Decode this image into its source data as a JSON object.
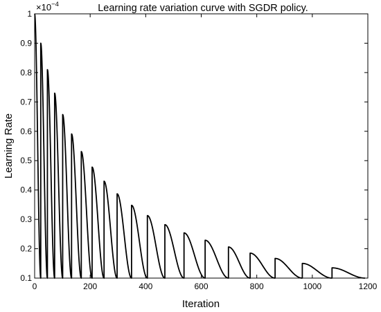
{
  "chart_data": {
    "type": "line",
    "title": "Learning rate variation curve with SGDR policy.",
    "xlabel": "Iteration",
    "ylabel": "Learning Rate",
    "xlim": [
      0,
      1200
    ],
    "ylim": [
      0.1,
      1.0
    ],
    "y_scale_factor": {
      "base": "×10",
      "exponent": "−4"
    },
    "grid": false,
    "legend": "none",
    "x_ticks": [
      0,
      200,
      400,
      600,
      800,
      1000,
      1200
    ],
    "x_tick_labels": [
      "0",
      "200",
      "400",
      "600",
      "800",
      "1000",
      "1200"
    ],
    "y_ticks": [
      0.1,
      0.2,
      0.3,
      0.4,
      0.5,
      0.6,
      0.7,
      0.8,
      0.9,
      1.0
    ],
    "y_tick_labels": [
      "0.1",
      "0.2",
      "0.3",
      "0.4",
      "0.5",
      "0.6",
      "0.7",
      "0.8",
      "0.9",
      "1"
    ],
    "line_color": "#000000",
    "schedule": "cosine annealing with warm restarts",
    "cycles": [
      {
        "start": 0,
        "end": 22,
        "peak": 1.0
      },
      {
        "start": 22,
        "end": 46,
        "peak": 0.9
      },
      {
        "start": 46,
        "end": 72,
        "peak": 0.81
      },
      {
        "start": 72,
        "end": 101,
        "peak": 0.73
      },
      {
        "start": 101,
        "end": 133,
        "peak": 0.657
      },
      {
        "start": 133,
        "end": 168,
        "peak": 0.591
      },
      {
        "start": 168,
        "end": 207,
        "peak": 0.531
      },
      {
        "start": 207,
        "end": 250,
        "peak": 0.478
      },
      {
        "start": 250,
        "end": 297,
        "peak": 0.43
      },
      {
        "start": 297,
        "end": 349,
        "peak": 0.387
      },
      {
        "start": 349,
        "end": 406,
        "peak": 0.348
      },
      {
        "start": 406,
        "end": 469,
        "peak": 0.313
      },
      {
        "start": 469,
        "end": 538,
        "peak": 0.282
      },
      {
        "start": 538,
        "end": 614,
        "peak": 0.254
      },
      {
        "start": 614,
        "end": 698,
        "peak": 0.229
      },
      {
        "start": 698,
        "end": 776,
        "peak": 0.206
      },
      {
        "start": 776,
        "end": 866,
        "peak": 0.185
      },
      {
        "start": 866,
        "end": 964,
        "peak": 0.167
      },
      {
        "start": 964,
        "end": 1071,
        "peak": 0.15
      },
      {
        "start": 1071,
        "end": 1190,
        "peak": 0.135
      }
    ],
    "min_lr": 0.1
  }
}
